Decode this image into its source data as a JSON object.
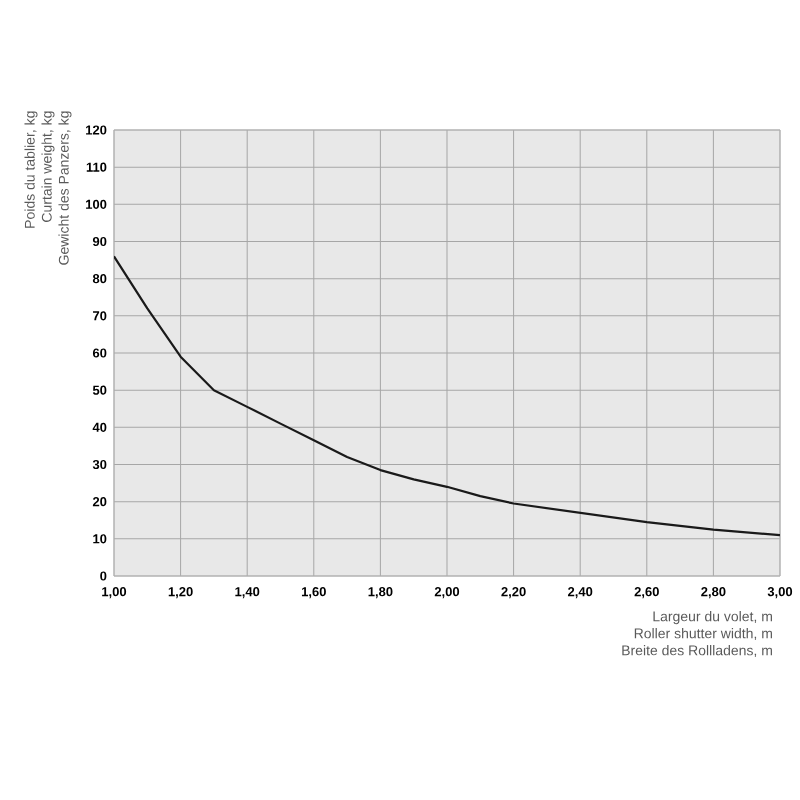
{
  "chart_data": {
    "type": "line",
    "xlabel": "Largeur du volet, m",
    "ylabel": "Poids du tablier, kg",
    "annotations": [
      "Curtain weight, kg",
      "Gewicht des Panzers, kg",
      "Roller shutter width, m",
      "Breite des Rollladens, m"
    ],
    "x": [
      1.0,
      1.1,
      1.2,
      1.3,
      1.4,
      1.5,
      1.6,
      1.7,
      1.8,
      1.9,
      2.0,
      2.1,
      2.2,
      2.4,
      2.6,
      2.8,
      3.0
    ],
    "series": [
      {
        "color": "#1a1a1a",
        "values": [
          86,
          72,
          59,
          50,
          45.5,
          41,
          36.5,
          32,
          28.5,
          26,
          24,
          21.5,
          19.5,
          17,
          14.5,
          12.5,
          11
        ]
      }
    ],
    "xlim": [
      1.0,
      3.0
    ],
    "xticks": [
      {
        "value": 1.0,
        "label": "1,00"
      },
      {
        "value": 1.2,
        "label": "1,20"
      },
      {
        "value": 1.4,
        "label": "1,40"
      },
      {
        "value": 1.6,
        "label": "1,60"
      },
      {
        "value": 1.8,
        "label": "1,80"
      },
      {
        "value": 2.0,
        "label": "2,00"
      },
      {
        "value": 2.2,
        "label": "2,20"
      },
      {
        "value": 2.4,
        "label": "2,40"
      },
      {
        "value": 2.6,
        "label": "2,60"
      },
      {
        "value": 2.8,
        "label": "2,80"
      },
      {
        "value": 3.0,
        "label": "3,00"
      }
    ],
    "ylim": [
      0,
      120
    ],
    "yticks": [
      0,
      10,
      20,
      30,
      40,
      50,
      60,
      70,
      80,
      90,
      100,
      110,
      120
    ],
    "grid": true,
    "marker": "none",
    "line_style": "solid"
  }
}
